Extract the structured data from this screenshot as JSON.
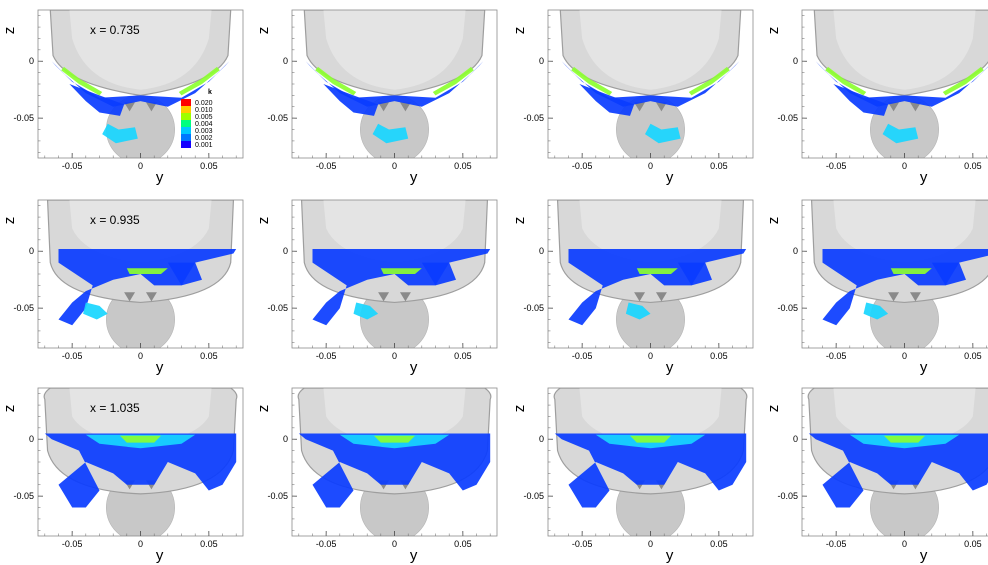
{
  "figure": {
    "axis_labels": {
      "x": "y",
      "y": "z"
    },
    "x_ticks": [
      "-0.05",
      "0",
      "0.05"
    ],
    "y_ticks": [
      "0",
      "-0.05"
    ],
    "row_annotations": [
      "x = 0.735",
      "x = 0.935",
      "x = 1.035"
    ],
    "legend": {
      "title": "k",
      "levels": [
        "0.020",
        "0.010",
        "0.005",
        "0.004",
        "0.003",
        "0.002",
        "0.001"
      ],
      "colors": [
        "#ff0000",
        "#ffcc00",
        "#9cff00",
        "#00ff7f",
        "#00c8ff",
        "#0078ff",
        "#1400ff"
      ]
    },
    "colors": {
      "hull": "#d8d8d8",
      "hull_edge": "#9e9e9e",
      "bulb": "#c8c8c8",
      "contour_low": "#0a3cff",
      "contour_mid": "#18d6ff",
      "contour_high": "#8cff30"
    }
  }
}
